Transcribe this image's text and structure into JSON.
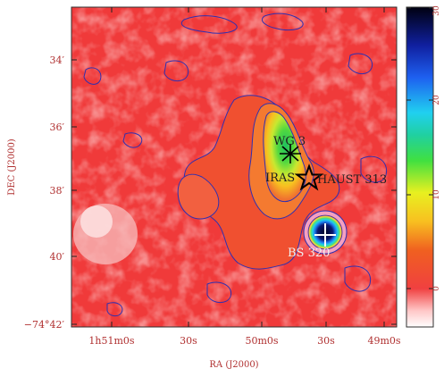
{
  "axes": {
    "xlabel": "RA (J2000)",
    "ylabel": "DEC (J2000)",
    "x_ticks": [
      {
        "label": "1h51m0s"
      },
      {
        "label": "30s"
      },
      {
        "label": "50m0s"
      },
      {
        "label": "30s"
      },
      {
        "label": "49m0s"
      }
    ],
    "y_ticks": [
      {
        "label": "34′"
      },
      {
        "label": "36′"
      },
      {
        "label": "38′"
      },
      {
        "label": "40′"
      },
      {
        "label": "−74°42′"
      }
    ],
    "color": "#b03030"
  },
  "colorbar": {
    "min": 0,
    "max": 30,
    "ticks": [
      "0",
      "10",
      "20",
      "30"
    ],
    "color": "#b03030"
  },
  "sources": [
    {
      "name": "WG 3",
      "marker": "asterisk"
    },
    {
      "name": "IRAS",
      "marker": "star"
    },
    {
      "name": "HAUST 313",
      "marker": "star"
    },
    {
      "name": "BS 320",
      "marker": "cross"
    }
  ],
  "colors": {
    "background_map": "#f03a3a",
    "contour": "#3030b0",
    "peak": "#000030"
  }
}
